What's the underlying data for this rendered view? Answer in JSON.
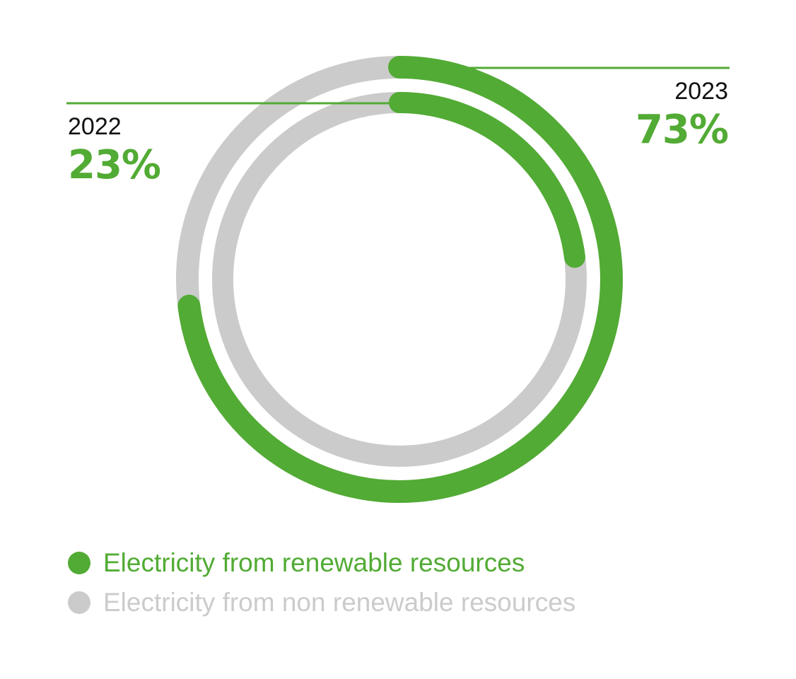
{
  "colors": {
    "renewable": "#52ab34",
    "non_renewable": "#cbcbcb",
    "text": "#111111"
  },
  "chart_data": {
    "type": "pie",
    "subtype": "concentric-donut",
    "title": "",
    "series": [
      {
        "name": "2023",
        "ring": "outer",
        "values": [
          73,
          27
        ],
        "label": "73%"
      },
      {
        "name": "2022",
        "ring": "inner",
        "values": [
          23,
          77
        ],
        "label": "23%"
      }
    ],
    "categories": [
      "Electricity from renewable resources",
      "Electricity from non renewable resources"
    ]
  },
  "legend": {
    "items": [
      {
        "label": "Electricity from renewable resources",
        "color": "#52ab34"
      },
      {
        "label": "Electricity from non renewable resources",
        "color": "#cbcbcb"
      }
    ]
  }
}
